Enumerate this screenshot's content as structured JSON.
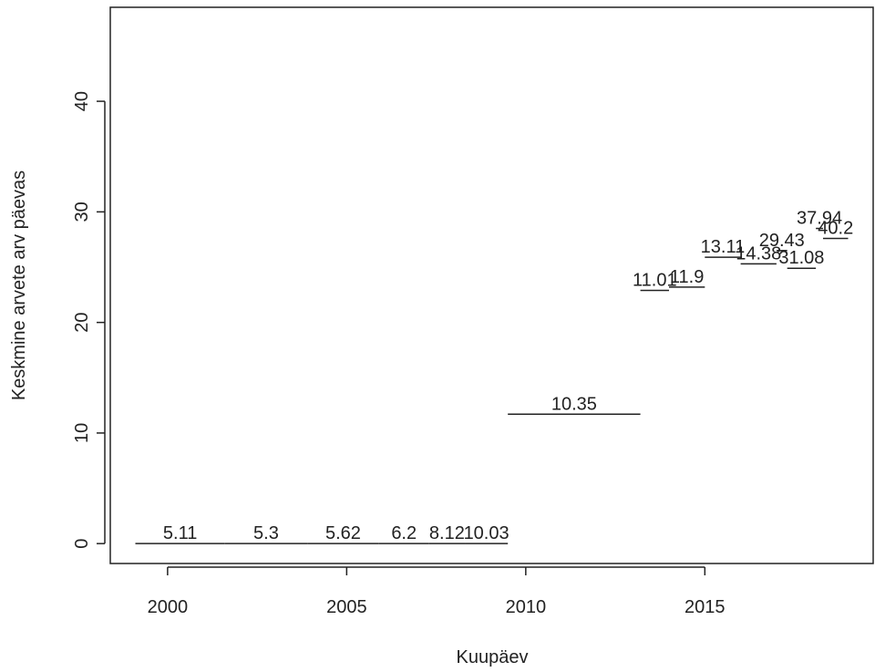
{
  "chart_data": {
    "type": "segment",
    "title": "",
    "xlabel": "Kuupäev",
    "ylabel": "Keskmine arvete arv päevas",
    "xlim": [
      1998.4,
      2019.7
    ],
    "ylim": [
      -1.8,
      48.5
    ],
    "x_ticks": [
      2000,
      2005,
      2010,
      2015
    ],
    "x_tick_labels": [
      "2000",
      "2005",
      "2010",
      "2015"
    ],
    "y_ticks": [
      0,
      10,
      20,
      30,
      40
    ],
    "y_tick_labels": [
      "0",
      "10",
      "20",
      "30",
      "40"
    ],
    "grid": false,
    "legend": "none",
    "color": "#222222",
    "segments": [
      {
        "label": "5.11",
        "x_start": 1999.1,
        "x_end": 2001.6,
        "y": 0.0
      },
      {
        "label": "5.3",
        "x_start": 2001.6,
        "x_end": 2003.9,
        "y": 0.0
      },
      {
        "label": "5.62",
        "x_start": 2003.9,
        "x_end": 2005.9,
        "y": 0.0
      },
      {
        "label": "6.2",
        "x_start": 2005.9,
        "x_end": 2007.3,
        "y": 0.0
      },
      {
        "label": "8.12",
        "x_start": 2007.3,
        "x_end": 2008.3,
        "y": 0.0
      },
      {
        "label": "10.03",
        "x_start": 2008.3,
        "x_end": 2009.5,
        "y": 0.0
      },
      {
        "label": "10.35",
        "x_start": 2009.5,
        "x_end": 2013.2,
        "y": 11.7
      },
      {
        "label": "11.01",
        "x_start": 2013.2,
        "x_end": 2014.0,
        "y": 22.9
      },
      {
        "label": "11.9",
        "x_start": 2014.0,
        "x_end": 2015.0,
        "y": 23.2
      },
      {
        "label": "13.11",
        "x_start": 2015.0,
        "x_end": 2016.0,
        "y": 25.9
      },
      {
        "label": "14.38",
        "x_start": 2016.0,
        "x_end": 2017.0,
        "y": 25.3
      },
      {
        "label": "29.43",
        "x_start": 2017.0,
        "x_end": 2017.3,
        "y": 26.5
      },
      {
        "label": "31.08",
        "x_start": 2017.3,
        "x_end": 2018.1,
        "y": 24.9
      },
      {
        "label": "37.94",
        "x_start": 2018.1,
        "x_end": 2018.3,
        "y": 28.5
      },
      {
        "label": "40.2",
        "x_start": 2018.3,
        "x_end": 2019.0,
        "y": 27.6
      }
    ]
  }
}
